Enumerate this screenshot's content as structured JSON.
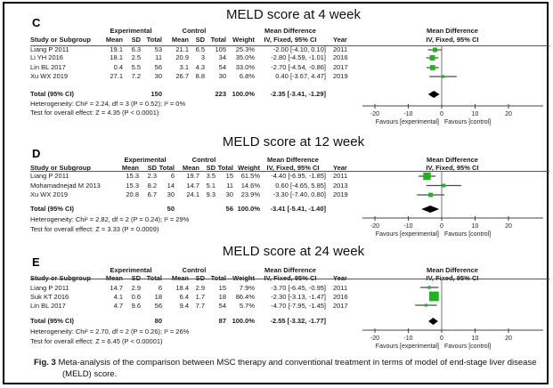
{
  "figure_caption": {
    "label": "Fig. 3",
    "text": "Meta-analysis of the comparison between MSC therapy and conventional treatment in terms of model of end-stage liver disease (MELD) score."
  },
  "table_headers": {
    "study": "Study or Subgroup",
    "experimental": "Experimental",
    "control": "Control",
    "mean": "Mean",
    "sd": "SD",
    "total": "Total",
    "weight": "Weight",
    "mean_difference": "Mean Difference",
    "iv_fixed": "IV, Fixed, 95% CI",
    "year": "Year"
  },
  "colors": {
    "effect_square": "#21b421",
    "diamond": "#000000",
    "ci_line": "#4a4a4a"
  },
  "chart_data": [
    {
      "type": "forest",
      "panel_letter": "C",
      "title": "MELD score at 4 week",
      "x_ticks": [
        -20,
        -10,
        0,
        10,
        20
      ],
      "xlim": [
        -26,
        28
      ],
      "favours_left": "Favours [experimental]",
      "favours_right": "Favours [control]",
      "studies": [
        {
          "study": "Liang P 2011",
          "exp_mean": "19.1",
          "exp_sd": "6.3",
          "exp_total": "53",
          "ctrl_mean": "21.1",
          "ctrl_sd": "6.5",
          "ctrl_total": "105",
          "weight": "25.3%",
          "weight_value": 25.3,
          "md": -2.0,
          "ci_low": -4.1,
          "ci_high": 0.1,
          "ci_label": "-2.00 [-4.10, 0.10]",
          "year": "2011"
        },
        {
          "study": "Li YH 2016",
          "exp_mean": "18.1",
          "exp_sd": "2.5",
          "exp_total": "11",
          "ctrl_mean": "20.9",
          "ctrl_sd": "3",
          "ctrl_total": "34",
          "weight": "35.0%",
          "weight_value": 35.0,
          "md": -2.8,
          "ci_low": -4.59,
          "ci_high": -1.01,
          "ci_label": "-2.80 [-4.59, -1.01]",
          "year": "2016"
        },
        {
          "study": "Lin BL 2017",
          "exp_mean": "0.4",
          "exp_sd": "5.5",
          "exp_total": "56",
          "ctrl_mean": "3.1",
          "ctrl_sd": "4.3",
          "ctrl_total": "54",
          "weight": "33.0%",
          "weight_value": 33.0,
          "md": -2.7,
          "ci_low": -4.54,
          "ci_high": -0.86,
          "ci_label": "-2.70 [-4.54, -0.86]",
          "year": "2017"
        },
        {
          "study": "Xu WX 2019",
          "exp_mean": "27.1",
          "exp_sd": "7.2",
          "exp_total": "30",
          "ctrl_mean": "26.7",
          "ctrl_sd": "8.8",
          "ctrl_total": "30",
          "weight": "6.8%",
          "weight_value": 6.8,
          "md": 0.4,
          "ci_low": -3.67,
          "ci_high": 4.47,
          "ci_label": "0.40 [-3.67, 4.47]",
          "year": "2019"
        }
      ],
      "total": {
        "label": "Total (95% CI)",
        "exp_total": "150",
        "ctrl_total": "223",
        "weight": "100.0%",
        "md": -2.35,
        "ci_low": -3.41,
        "ci_high": -1.29,
        "ci_label": "-2.35 [-3.41, -1.29]"
      },
      "heterogeneity": "Heterogeneity: Chi² = 2.24, df = 3 (P = 0.52); I² = 0%",
      "overall_effect": "Test for overall effect: Z = 4.35 (P < 0.0001)"
    },
    {
      "type": "forest",
      "panel_letter": "D",
      "title": "MELD score at 12 week",
      "x_ticks": [
        -20,
        -10,
        0,
        10,
        20
      ],
      "xlim": [
        -26,
        28
      ],
      "favours_left": "Favours [experimental]",
      "favours_right": "Favours [control]",
      "studies": [
        {
          "study": "Liang P 2011",
          "exp_mean": "15.3",
          "exp_sd": "2.3",
          "exp_total": "6",
          "ctrl_mean": "19.7",
          "ctrl_sd": "3.5",
          "ctrl_total": "15",
          "weight": "61.5%",
          "weight_value": 61.5,
          "md": -4.4,
          "ci_low": -6.95,
          "ci_high": -1.85,
          "ci_label": "-4.40 [-6.95, -1.85]",
          "year": "2011"
        },
        {
          "study": "Mohamadnejad M 2013",
          "exp_mean": "15.3",
          "exp_sd": "8.2",
          "exp_total": "14",
          "ctrl_mean": "14.7",
          "ctrl_sd": "5.1",
          "ctrl_total": "11",
          "weight": "14.6%",
          "weight_value": 14.6,
          "md": 0.6,
          "ci_low": -4.65,
          "ci_high": 5.85,
          "ci_label": "0.60 [-4.65, 5.85]",
          "year": "2013"
        },
        {
          "study": "Xu WX 2019",
          "exp_mean": "20.8",
          "exp_sd": "6.7",
          "exp_total": "30",
          "ctrl_mean": "24.1",
          "ctrl_sd": "9.3",
          "ctrl_total": "30",
          "weight": "23.9%",
          "weight_value": 23.9,
          "md": -3.3,
          "ci_low": -7.4,
          "ci_high": 0.8,
          "ci_label": "-3.30 [-7.40, 0.80]",
          "year": "2019"
        }
      ],
      "total": {
        "label": "Total (95% CI)",
        "exp_total": "50",
        "ctrl_total": "56",
        "weight": "100.0%",
        "md": -3.41,
        "ci_low": -5.41,
        "ci_high": -1.4,
        "ci_label": "-3.41 [-5.41, -1.40]"
      },
      "heterogeneity": "Heterogeneity: Chi² = 2.82, df = 2 (P = 0.24); I² = 29%",
      "overall_effect": "Test for overall effect: Z = 3.33 (P = 0.0009)"
    },
    {
      "type": "forest",
      "panel_letter": "E",
      "title": "MELD score at 24 week",
      "x_ticks": [
        -20,
        -10,
        0,
        10,
        20
      ],
      "xlim": [
        -26,
        28
      ],
      "favours_left": "Favours [experimental]",
      "favours_right": "Favours [control]",
      "studies": [
        {
          "study": "Liang P 2011",
          "exp_mean": "14.7",
          "exp_sd": "2.9",
          "exp_total": "6",
          "ctrl_mean": "18.4",
          "ctrl_sd": "2.9",
          "ctrl_total": "15",
          "weight": "7.9%",
          "weight_value": 7.9,
          "md": -3.7,
          "ci_low": -6.45,
          "ci_high": -0.95,
          "ci_label": "-3.70 [-6.45, -0.95]",
          "year": "2011"
        },
        {
          "study": "Suk KT 2016",
          "exp_mean": "4.1",
          "exp_sd": "0.6",
          "exp_total": "18",
          "ctrl_mean": "6.4",
          "ctrl_sd": "1.7",
          "ctrl_total": "18",
          "weight": "86.4%",
          "weight_value": 86.4,
          "md": -2.3,
          "ci_low": -3.13,
          "ci_high": -1.47,
          "ci_label": "-2.30 [-3.13, -1.47]",
          "year": "2016"
        },
        {
          "study": "Lin BL 2017",
          "exp_mean": "4.7",
          "exp_sd": "9.6",
          "exp_total": "56",
          "ctrl_mean": "9.4",
          "ctrl_sd": "7.7",
          "ctrl_total": "54",
          "weight": "5.7%",
          "weight_value": 5.7,
          "md": -4.7,
          "ci_low": -7.95,
          "ci_high": -1.45,
          "ci_label": "-4.70 [-7.95, -1.45]",
          "year": "2017"
        }
      ],
      "total": {
        "label": "Total (95% CI)",
        "exp_total": "80",
        "ctrl_total": "87",
        "weight": "100.0%",
        "md": -2.55,
        "ci_low": -3.32,
        "ci_high": -1.77,
        "ci_label": "-2.55 [-3.32, -1.77]"
      },
      "heterogeneity": "Heterogeneity: Chi² = 2.70, df = 2 (P = 0.26); I² = 26%",
      "overall_effect": "Test for overall effect: Z = 6.45 (P < 0.00001)"
    }
  ]
}
